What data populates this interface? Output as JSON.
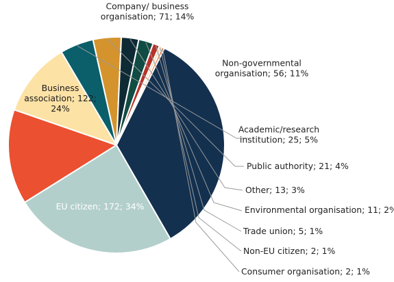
{
  "chart_data": {
    "type": "pie",
    "title": "",
    "slices": [
      {
        "name": "Company/ business organisation",
        "count": 71,
        "percent": 14,
        "label_lines": [
          "Company/ business",
          "organisation; 71; 14%"
        ],
        "color": "#eb5030"
      },
      {
        "name": "Non-governmental organisation",
        "count": 56,
        "percent": 11,
        "label_lines": [
          "Non-governmental",
          "organisation; 56; 11%"
        ],
        "color": "#fde2a6"
      },
      {
        "name": "Academic/research institution",
        "count": 25,
        "percent": 5,
        "label_lines": [
          "Academic/research",
          "institution; 25; 5%"
        ],
        "color": "#0b5f6b"
      },
      {
        "name": "Public authority",
        "count": 21,
        "percent": 4,
        "label_lines": [
          "Public authority; 21; 4%"
        ],
        "color": "#d4932d"
      },
      {
        "name": "Other",
        "count": 13,
        "percent": 3,
        "label_lines": [
          "Other; 13; 3%"
        ],
        "color": "#0e2a35"
      },
      {
        "name": "Environmental organisation",
        "count": 11,
        "percent": 2,
        "label_lines": [
          "Environmental organisation; 11; 2%"
        ],
        "color": "#104c43"
      },
      {
        "name": "Trade union",
        "count": 5,
        "percent": 1,
        "label_lines": [
          "Trade union; 5; 1%"
        ],
        "color": "#b7332a"
      },
      {
        "name": "Non-EU citizen",
        "count": 2,
        "percent": 1,
        "label_lines": [
          "Non-EU citizen; 2; 1%"
        ],
        "color": "#f6d7a9"
      },
      {
        "name": "Consumer organisation",
        "count": 2,
        "percent": 1,
        "label_lines": [
          "Consumer organisation; 2; 1%"
        ],
        "color": "#e98a55"
      },
      {
        "name": "EU citizen",
        "count": 172,
        "percent": 34,
        "label_lines": [
          "EU citizen; 172; 34%"
        ],
        "color": "#13304f"
      },
      {
        "name": "Business association",
        "count": 122,
        "percent": 24,
        "label_lines": [
          "Business",
          "association; 122;",
          "24%"
        ],
        "color": "#b3cfcb"
      }
    ]
  }
}
